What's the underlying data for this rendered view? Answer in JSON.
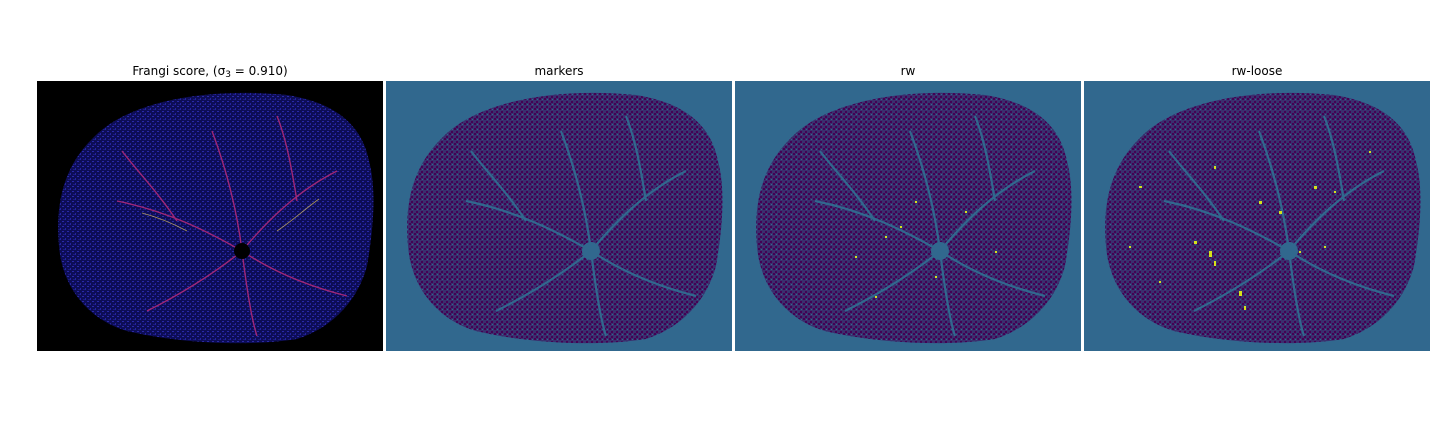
{
  "figure": {
    "panels": [
      {
        "id": "frangi",
        "title": "Frangi score, (σ₃ = 0.910)",
        "title_prefix": "Frangi score, (σ",
        "title_sub": "3",
        "title_suffix": " = 0.910)"
      },
      {
        "id": "markers",
        "title": "markers"
      },
      {
        "id": "rw",
        "title": "rw"
      },
      {
        "id": "rw-loose",
        "title": "rw-loose"
      }
    ],
    "colors": {
      "frangi_background": "#000000",
      "frangi_texture": "#1a1a8c",
      "frangi_vessel": "#c0307a",
      "frangi_highlight": "#f0d060",
      "seg_background": "#31688e",
      "seg_texture": "#440154",
      "seg_highlight": "#d6e21a"
    }
  }
}
